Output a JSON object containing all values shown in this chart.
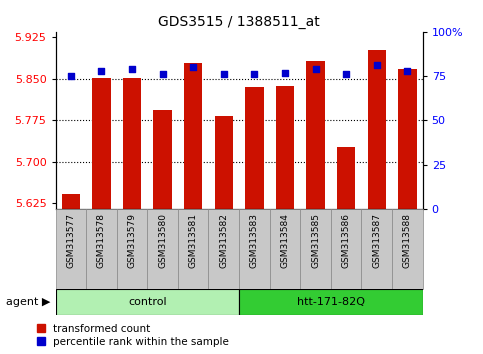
{
  "title": "GDS3515 / 1388511_at",
  "samples": [
    "GSM313577",
    "GSM313578",
    "GSM313579",
    "GSM313580",
    "GSM313581",
    "GSM313582",
    "GSM313583",
    "GSM313584",
    "GSM313585",
    "GSM313586",
    "GSM313587",
    "GSM313588"
  ],
  "transformed_count": [
    5.642,
    5.852,
    5.852,
    5.793,
    5.878,
    5.783,
    5.835,
    5.838,
    5.882,
    5.727,
    5.903,
    5.868
  ],
  "percentile_rank": [
    75,
    78,
    79,
    76,
    80,
    76,
    76,
    77,
    79,
    76,
    81,
    78
  ],
  "ylim_left": [
    5.615,
    5.935
  ],
  "ylim_right": [
    0,
    100
  ],
  "yticks_left": [
    5.625,
    5.7,
    5.775,
    5.85,
    5.925
  ],
  "yticks_right": [
    0,
    25,
    50,
    75,
    100
  ],
  "yticks_right_labels": [
    "0",
    "25",
    "50",
    "75",
    "100%"
  ],
  "gridlines_at": [
    5.7,
    5.775,
    5.85
  ],
  "groups": [
    {
      "label": "control",
      "start": 0,
      "end": 5,
      "color": "#b2f0b2"
    },
    {
      "label": "htt-171-82Q",
      "start": 6,
      "end": 11,
      "color": "#33cc33"
    }
  ],
  "bar_color": "#cc1100",
  "dot_color": "#0000cc",
  "xtick_bg": "#c8c8c8",
  "legend_red_label": "transformed count",
  "legend_blue_label": "percentile rank within the sample",
  "agent_label": "agent"
}
